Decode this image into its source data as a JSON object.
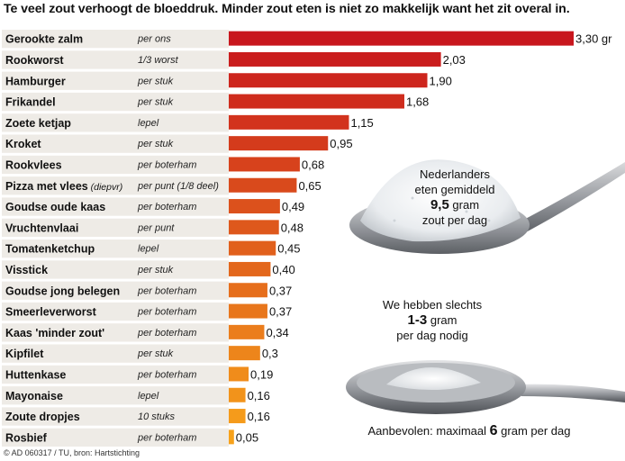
{
  "header": {
    "title": "Te veel zout verhoogt de bloeddruk. Minder zout eten is niet zo makkelijk want het zit overal in."
  },
  "footer": {
    "source": "© AD 060317 / TU, bron: Hartstichting"
  },
  "callouts": {
    "average_line1": "Nederlanders",
    "average_line2": "eten gemiddeld",
    "average_value": "9,5",
    "average_unit": "gram",
    "average_line4": "zout per dag",
    "need_line1": "We hebben slechts",
    "need_value": "1-3",
    "need_unit": "gram",
    "need_line3": "per dag nodig",
    "advice_prefix": "Aanbevolen: maximaal",
    "advice_value": "6",
    "advice_suffix": "gram per dag"
  },
  "chart_data": {
    "type": "bar",
    "orientation": "horizontal",
    "unit": "gr",
    "categories": [
      {
        "name": "Gerookte zalm",
        "note": "",
        "portion": "per ons"
      },
      {
        "name": "Rookworst",
        "note": "",
        "portion": "1/3 worst"
      },
      {
        "name": "Hamburger",
        "note": "",
        "portion": "per stuk"
      },
      {
        "name": "Frikandel",
        "note": "",
        "portion": "per stuk"
      },
      {
        "name": "Zoete ketjap",
        "note": "",
        "portion": "lepel"
      },
      {
        "name": "Kroket",
        "note": "",
        "portion": "per stuk"
      },
      {
        "name": "Rookvlees",
        "note": "",
        "portion": "per boterham"
      },
      {
        "name": "Pizza met vlees",
        "note": "(diepvr)",
        "portion": "per punt (1/8 deel)"
      },
      {
        "name": "Goudse oude kaas",
        "note": "",
        "portion": "per boterham"
      },
      {
        "name": "Vruchtenvlaai",
        "note": "",
        "portion": "per punt"
      },
      {
        "name": "Tomatenketchup",
        "note": "",
        "portion": "lepel"
      },
      {
        "name": "Visstick",
        "note": "",
        "portion": "per stuk"
      },
      {
        "name": "Goudse jong belegen",
        "note": "",
        "portion": "per boterham"
      },
      {
        "name": "Smeerleverworst",
        "note": "",
        "portion": "per boterham"
      },
      {
        "name": "Kaas 'minder zout'",
        "note": "",
        "portion": "per boterham"
      },
      {
        "name": "Kipfilet",
        "note": "",
        "portion": "per stuk"
      },
      {
        "name": "Huttenkase",
        "note": "",
        "portion": "per boterham"
      },
      {
        "name": "Mayonaise",
        "note": "",
        "portion": "lepel"
      },
      {
        "name": "Zoute dropjes",
        "note": "",
        "portion": "10 stuks"
      },
      {
        "name": "Rosbief",
        "note": "",
        "portion": "per boterham"
      }
    ],
    "values": [
      3.3,
      2.03,
      1.9,
      1.68,
      1.15,
      0.95,
      0.68,
      0.65,
      0.49,
      0.48,
      0.45,
      0.4,
      0.37,
      0.37,
      0.34,
      0.3,
      0.19,
      0.16,
      0.16,
      0.05
    ],
    "value_labels": [
      "3,30 gr",
      "2,03",
      "1,90",
      "1,68",
      "1,15",
      "0,95",
      "0,68",
      "0,65",
      "0,49",
      "0,48",
      "0,45",
      "0,40",
      "0,37",
      "0,37",
      "0,34",
      "0,3",
      "0,19",
      "0,16",
      "0,16",
      "0,05"
    ],
    "xlim": [
      0,
      3.3
    ],
    "colors": {
      "bar_high": "#c8161d",
      "bar_low": "#f7a21b",
      "row_stripe": "#eeebe6"
    }
  }
}
